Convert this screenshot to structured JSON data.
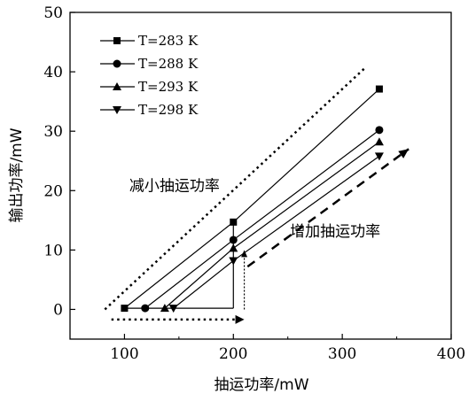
{
  "chart_data": {
    "type": "line",
    "xlabel": "抽运功率/mW",
    "ylabel": "输出功率/mW",
    "xlim": [
      50,
      400
    ],
    "ylim": [
      -5,
      50
    ],
    "xticks": [
      100,
      200,
      300,
      400
    ],
    "yticks": [
      0,
      10,
      20,
      30,
      40,
      50
    ],
    "grid": false,
    "legend_position": "top-left",
    "series": [
      {
        "name": "T=283 K",
        "marker": "square",
        "x": [
          100,
          200,
          334
        ],
        "y": [
          0.2,
          14.7,
          37.1
        ]
      },
      {
        "name": "T=288 K",
        "marker": "circle",
        "x": [
          119,
          200,
          334
        ],
        "y": [
          0.2,
          11.7,
          30.2
        ]
      },
      {
        "name": "T=293 K",
        "marker": "triangle-up",
        "x": [
          137,
          200,
          334
        ],
        "y": [
          0.2,
          10.3,
          28.2
        ]
      },
      {
        "name": "T=298 K",
        "marker": "triangle-down",
        "x": [
          145,
          200,
          334
        ],
        "y": [
          0.2,
          8.2,
          25.8
        ]
      }
    ],
    "annotations": [
      {
        "text": "减小抽运功率",
        "x": 80,
        "y": 20
      },
      {
        "text": "增加抽运功率",
        "x": 252,
        "y": 12.3
      }
    ],
    "guides": {
      "baseline_y": 0.2,
      "baseline_x": [
        100,
        200
      ],
      "vertical_x": 200,
      "upper_dotted": {
        "x": [
          82,
          320
        ],
        "y": [
          0,
          40.5
        ]
      },
      "lower_dashed": {
        "x": [
          213,
          361
        ],
        "y": [
          7.2,
          27
        ]
      },
      "bottom_dotted": {
        "x": [
          88,
          210
        ],
        "y": -1.7
      },
      "up_dotted": {
        "x": 210,
        "y": [
          0,
          10
        ]
      }
    }
  }
}
